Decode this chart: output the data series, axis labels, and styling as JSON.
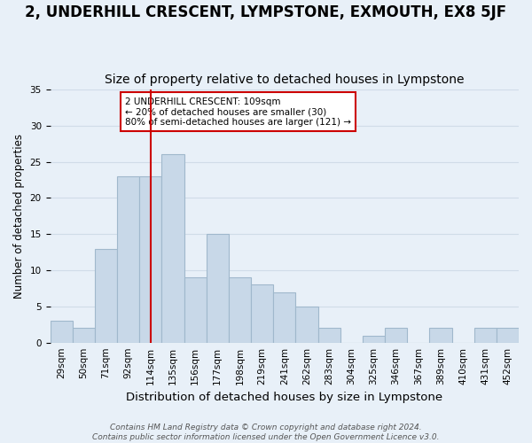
{
  "title": "2, UNDERHILL CRESCENT, LYMPSTONE, EXMOUTH, EX8 5JF",
  "subtitle": "Size of property relative to detached houses in Lympstone",
  "xlabel": "Distribution of detached houses by size in Lympstone",
  "ylabel": "Number of detached properties",
  "bar_labels": [
    "29sqm",
    "50sqm",
    "71sqm",
    "92sqm",
    "114sqm",
    "135sqm",
    "156sqm",
    "177sqm",
    "198sqm",
    "219sqm",
    "241sqm",
    "262sqm",
    "283sqm",
    "304sqm",
    "325sqm",
    "346sqm",
    "367sqm",
    "389sqm",
    "410sqm",
    "431sqm",
    "452sqm"
  ],
  "bar_values": [
    3,
    2,
    13,
    23,
    23,
    26,
    9,
    15,
    9,
    8,
    7,
    5,
    2,
    0,
    1,
    2,
    0,
    2,
    0,
    2,
    2
  ],
  "bar_color": "#c8d8e8",
  "bar_edge_color": "#a0b8cc",
  "vline_x_index": 4,
  "vline_color": "#cc0000",
  "annotation_line1": "2 UNDERHILL CRESCENT: 109sqm",
  "annotation_line2": "← 20% of detached houses are smaller (30)",
  "annotation_line3": "80% of semi-detached houses are larger (121) →",
  "annotation_box_color": "#ffffff",
  "annotation_box_edge": "#cc0000",
  "ylim": [
    0,
    35
  ],
  "yticks": [
    0,
    5,
    10,
    15,
    20,
    25,
    30,
    35
  ],
  "grid_color": "#d0dce8",
  "background_color": "#e8f0f8",
  "footer_line1": "Contains HM Land Registry data © Crown copyright and database right 2024.",
  "footer_line2": "Contains public sector information licensed under the Open Government Licence v3.0.",
  "title_fontsize": 12,
  "subtitle_fontsize": 10,
  "xlabel_fontsize": 9.5,
  "ylabel_fontsize": 8.5,
  "tick_fontsize": 7.5,
  "footer_fontsize": 6.5
}
